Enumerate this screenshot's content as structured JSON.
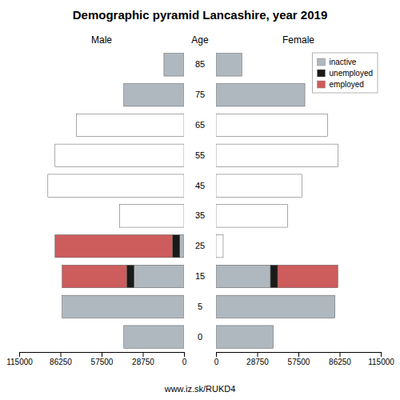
{
  "chart_data": {
    "type": "bar",
    "title": "Demographic pyramid Lancashire, year 2019",
    "orientation": "horizontal",
    "stacked": true,
    "ylabel": "Age",
    "annotations": [
      "www.iz.sk/RUKD4"
    ],
    "categories": [
      "0",
      "5",
      "15",
      "25",
      "35",
      "45",
      "55",
      "65",
      "75",
      "85"
    ],
    "xlim": [
      0,
      115000
    ],
    "xticks": [
      0,
      28750,
      57500,
      86250,
      115000
    ],
    "legend": "upper right",
    "panels": [
      {
        "title": "Male",
        "series": [
          {
            "name": "inactive",
            "color": "#b0b8bf",
            "colors": [
              "#b0b8bf",
              "#b0b8bf",
              "#b0b8bf",
              "#b0b8bf",
              "#ffffff",
              "#ffffff",
              "#ffffff",
              "#ffffff",
              "#b0b8bf",
              "#b0b8bf"
            ],
            "values": [
              42000,
              85000,
              35000,
              3000,
              45000,
              95000,
              90000,
              75000,
              42000,
              14000
            ]
          },
          {
            "name": "unemployed",
            "color": "#1a1a1a",
            "values": [
              0,
              0,
              5000,
              5000,
              0,
              0,
              0,
              0,
              0,
              0
            ]
          },
          {
            "name": "employed",
            "color": "#cd5c5c",
            "values": [
              0,
              0,
              45000,
              82000,
              0,
              0,
              0,
              0,
              0,
              0
            ]
          }
        ]
      },
      {
        "title": "Female",
        "series": [
          {
            "name": "inactive",
            "color": "#b0b8bf",
            "colors": [
              "#b0b8bf",
              "#b0b8bf",
              "#b0b8bf",
              "#ffffff",
              "#ffffff",
              "#ffffff",
              "#ffffff",
              "#ffffff",
              "#b0b8bf",
              "#b0b8bf"
            ],
            "values": [
              40000,
              83000,
              38000,
              5000,
              50000,
              60000,
              85000,
              78000,
              62000,
              18000
            ]
          },
          {
            "name": "unemployed",
            "color": "#1a1a1a",
            "values": [
              0,
              0,
              5000,
              0,
              0,
              0,
              0,
              0,
              0,
              0
            ]
          },
          {
            "name": "employed",
            "color": "#cd5c5c",
            "values": [
              0,
              0,
              42000,
              0,
              0,
              0,
              0,
              0,
              0,
              0
            ]
          }
        ]
      }
    ]
  }
}
